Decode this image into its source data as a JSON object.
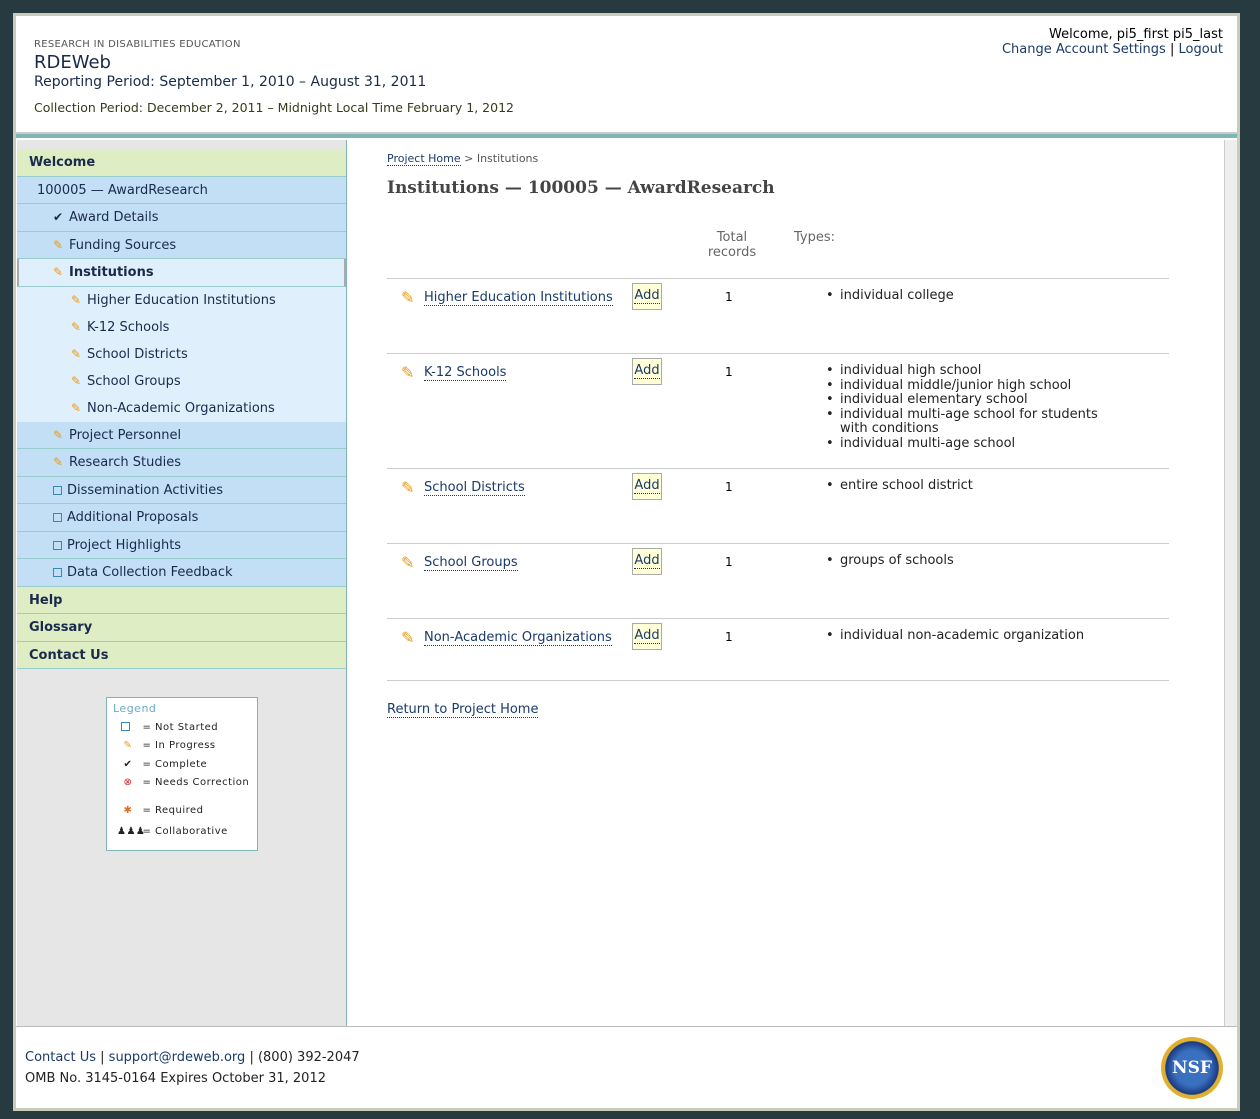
{
  "header": {
    "org": "RESEARCH IN DISABILITIES EDUCATION",
    "app": "RDEWeb",
    "reporting": "Reporting Period: September 1, 2010 – August 31, 2011",
    "collection": "Collection Period: December 2, 2011 – Midnight Local Time February 1, 2012",
    "welcome": "Welcome, pi5_first pi5_last",
    "settings": "Change Account Settings",
    "sep": "|",
    "logout": "Logout"
  },
  "sidebar": {
    "welcome": "Welcome",
    "award": "100005 — AwardResearch",
    "items": [
      {
        "label": "Award Details",
        "status": "complete"
      },
      {
        "label": "Funding Sources",
        "status": "in-progress"
      },
      {
        "label": "Institutions",
        "status": "in-progress"
      },
      {
        "label": "Higher Education Institutions",
        "status": "in-progress"
      },
      {
        "label": "K-12 Schools",
        "status": "in-progress"
      },
      {
        "label": "School Districts",
        "status": "in-progress"
      },
      {
        "label": "School Groups",
        "status": "in-progress"
      },
      {
        "label": "Non-Academic Organizations",
        "status": "in-progress"
      },
      {
        "label": "Project Personnel",
        "status": "in-progress"
      },
      {
        "label": "Research Studies",
        "status": "in-progress"
      },
      {
        "label": "Dissemination Activities",
        "status": "not-started"
      },
      {
        "label": "Additional Proposals",
        "status": "not-started"
      },
      {
        "label": "Project Highlights",
        "status": "not-started"
      },
      {
        "label": "Data Collection Feedback",
        "status": "not-started"
      }
    ],
    "help": "Help",
    "glossary": "Glossary",
    "contact": "Contact Us"
  },
  "legend": {
    "title": "Legend",
    "eq": "=",
    "items": [
      "Not Started",
      "In Progress",
      "Complete",
      "Needs Correction",
      "Required",
      "Collaborative"
    ]
  },
  "main": {
    "crumb_home": "Project Home",
    "crumb_sep": ">",
    "crumb_current": "Institutions",
    "title": "Institutions — 100005 — AwardResearch",
    "col_total": "Total records",
    "col_types": "Types:",
    "add": "Add",
    "rows": [
      {
        "name": "Higher Education Institutions",
        "count": "1",
        "types": [
          "individual college"
        ]
      },
      {
        "name": "K-12 Schools",
        "count": "1",
        "types": [
          "individual high school",
          "individual middle/junior high school",
          "individual elementary school",
          "individual multi-age school for students with conditions",
          "individual multi-age school"
        ]
      },
      {
        "name": "School Districts",
        "count": "1",
        "types": [
          "entire school district"
        ]
      },
      {
        "name": "School Groups",
        "count": "1",
        "types": [
          "groups of schools"
        ]
      },
      {
        "name": "Non-Academic Organizations",
        "count": "1",
        "types": [
          "individual non-academic organization"
        ]
      }
    ],
    "return": "Return to Project Home"
  },
  "footer": {
    "contact": "Contact Us",
    "email": "support@rdeweb.org",
    "phone": "(800) 392-2047",
    "sep": "|",
    "omb": "OMB No. 3145-0164 Expires October 31, 2012",
    "logo": "NSF"
  }
}
